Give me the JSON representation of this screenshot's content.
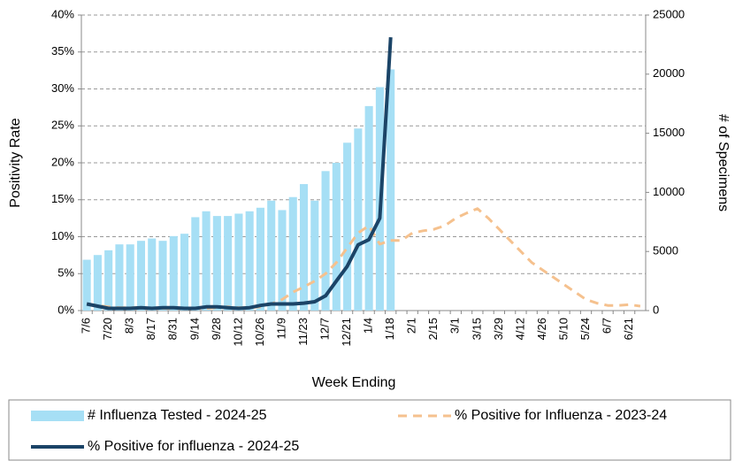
{
  "chart_data": {
    "type": "bar-line",
    "x_label": "Week Ending",
    "y_label": "Positivity Rate",
    "y2_label": "# of Specimens",
    "categories": [
      "7/6",
      null,
      "7/20",
      null,
      "8/3",
      null,
      "8/17",
      null,
      "8/31",
      null,
      "9/14",
      null,
      "9/28",
      null,
      "10/12",
      null,
      "10/26",
      null,
      "11/9",
      null,
      "11/23",
      null,
      "12/7",
      null,
      "12/21",
      null,
      "1/4",
      null,
      "1/18",
      null,
      "2/1",
      null,
      "2/15",
      null,
      "3/1",
      null,
      "3/15",
      null,
      "3/29",
      null,
      "4/12",
      null,
      "4/26",
      null,
      "5/10",
      null,
      "5/24",
      null,
      "6/7",
      null,
      "6/21",
      null
    ],
    "series": [
      {
        "name": "# Influenza Tested - 2024-25",
        "type": "bar",
        "axis": "y2",
        "color": "#a6dff5",
        "values": [
          4300,
          4700,
          5100,
          5600,
          5600,
          5900,
          6100,
          5900,
          6300,
          6500,
          7900,
          8400,
          8000,
          8000,
          8200,
          8400,
          8700,
          9300,
          8500,
          9600,
          10700,
          9300,
          11800,
          12500,
          14200,
          15400,
          17300,
          18900,
          20400,
          null,
          null,
          null,
          null,
          null,
          null,
          null,
          null,
          null,
          null,
          null,
          null,
          null,
          null,
          null,
          null,
          null,
          null,
          null,
          null,
          null,
          null,
          null
        ]
      },
      {
        "name": "% Positive for Influenza - 2023-24",
        "type": "line",
        "line_style": "dashed",
        "color": "#f5c18e",
        "values": [
          0.9,
          0.7,
          0.5,
          0.4,
          0.4,
          0.4,
          0.3,
          0.3,
          0.3,
          0.3,
          0.3,
          0.3,
          0.4,
          0.5,
          0.4,
          0.4,
          0.5,
          0.9,
          1.5,
          2.5,
          3.2,
          4.0,
          5.0,
          6.5,
          8.5,
          10.5,
          11.5,
          9.0,
          9.5,
          9.5,
          10.5,
          10.8,
          11.0,
          11.5,
          12.5,
          13.2,
          13.8,
          12.5,
          11.0,
          9.5,
          8.0,
          6.5,
          5.5,
          4.5,
          3.5,
          2.5,
          1.5,
          1.0,
          0.7,
          0.7,
          0.8,
          0.6
        ]
      },
      {
        "name": "% Positive for influenza - 2024-25",
        "type": "line",
        "line_style": "solid",
        "color": "#1b4467",
        "values": [
          0.9,
          0.6,
          0.3,
          0.3,
          0.3,
          0.4,
          0.3,
          0.4,
          0.4,
          0.3,
          0.3,
          0.5,
          0.5,
          0.4,
          0.3,
          0.4,
          0.7,
          0.9,
          0.9,
          0.9,
          1.0,
          1.2,
          2.0,
          4.0,
          6.0,
          8.9,
          9.6,
          12.5,
          37.0,
          null,
          null,
          null,
          null,
          null,
          null,
          null,
          null,
          null,
          null,
          null,
          null,
          null,
          null,
          null,
          null,
          null,
          null,
          null,
          null,
          null,
          null,
          null
        ]
      }
    ],
    "ylim": [
      0,
      40
    ],
    "yticks": [
      {
        "value": 0,
        "label": "0%"
      },
      {
        "value": 5,
        "label": "5%"
      },
      {
        "value": 10,
        "label": "10%"
      },
      {
        "value": 15,
        "label": "15%"
      },
      {
        "value": 20,
        "label": "20%"
      },
      {
        "value": 25,
        "label": "25%"
      },
      {
        "value": 30,
        "label": "30%"
      },
      {
        "value": 35,
        "label": "35%"
      },
      {
        "value": 40,
        "label": "40%"
      }
    ],
    "y2lim": [
      0,
      25000
    ],
    "y2ticks": [
      0,
      5000,
      10000,
      15000,
      20000,
      25000
    ],
    "grid": true,
    "legend": "bottom"
  }
}
